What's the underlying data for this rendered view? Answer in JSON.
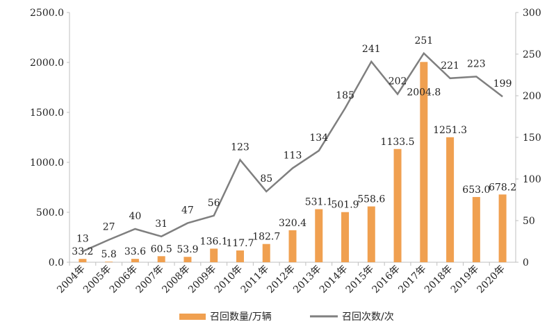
{
  "chart_data": {
    "type": "bar+line",
    "categories": [
      "2004年",
      "2005年",
      "2006年",
      "2007年",
      "2008年",
      "2009年",
      "2010年",
      "2011年",
      "2012年",
      "2013年",
      "2014年",
      "2015年",
      "2016年",
      "2017年",
      "2018年",
      "2019年",
      "2020年"
    ],
    "series": [
      {
        "name": "召回数量/万辆",
        "type": "bar",
        "axis": "left",
        "color": "#F0A050",
        "values": [
          33.2,
          5.8,
          33.6,
          60.5,
          53.9,
          136.1,
          117.7,
          182.7,
          320.4,
          531.1,
          501.9,
          558.6,
          1133.5,
          2004.8,
          1251.3,
          653.0,
          678.2
        ],
        "labels": [
          "33.2",
          "5.8",
          "33.6",
          "60.5",
          "53.9",
          "136.1",
          "117.7",
          "182.7",
          "320.4",
          "531.1",
          "501.9",
          "558.6",
          "1133.5",
          "2004.8",
          "1251.3",
          "653.0",
          "678.2"
        ]
      },
      {
        "name": "召回次数/次",
        "type": "line",
        "axis": "right",
        "color": "#7F7F7F",
        "values": [
          13,
          27,
          40,
          31,
          47,
          56,
          123,
          85,
          113,
          134,
          185,
          241,
          202,
          251,
          221,
          223,
          199
        ],
        "labels": [
          "13",
          "27",
          "40",
          "31",
          "47",
          "56",
          "123",
          "85",
          "113",
          "134",
          "185",
          "241",
          "202",
          "251",
          "221",
          "223",
          "199"
        ]
      }
    ],
    "left_axis": {
      "ylim": [
        0,
        2500
      ],
      "ticks": [
        "0.0",
        "500.0",
        "1000.0",
        "1500.0",
        "2000.0",
        "2500.0"
      ],
      "tick_values": [
        0,
        500,
        1000,
        1500,
        2000,
        2500
      ]
    },
    "right_axis": {
      "ylim": [
        0,
        300
      ],
      "ticks": [
        "0",
        "50",
        "100",
        "150",
        "200",
        "250",
        "300"
      ],
      "tick_values": [
        0,
        50,
        100,
        150,
        200,
        250,
        300
      ]
    },
    "grid": false,
    "legend": {
      "position": "bottom-center",
      "items": [
        "召回数量/万辆",
        "召回次数/次"
      ]
    }
  }
}
